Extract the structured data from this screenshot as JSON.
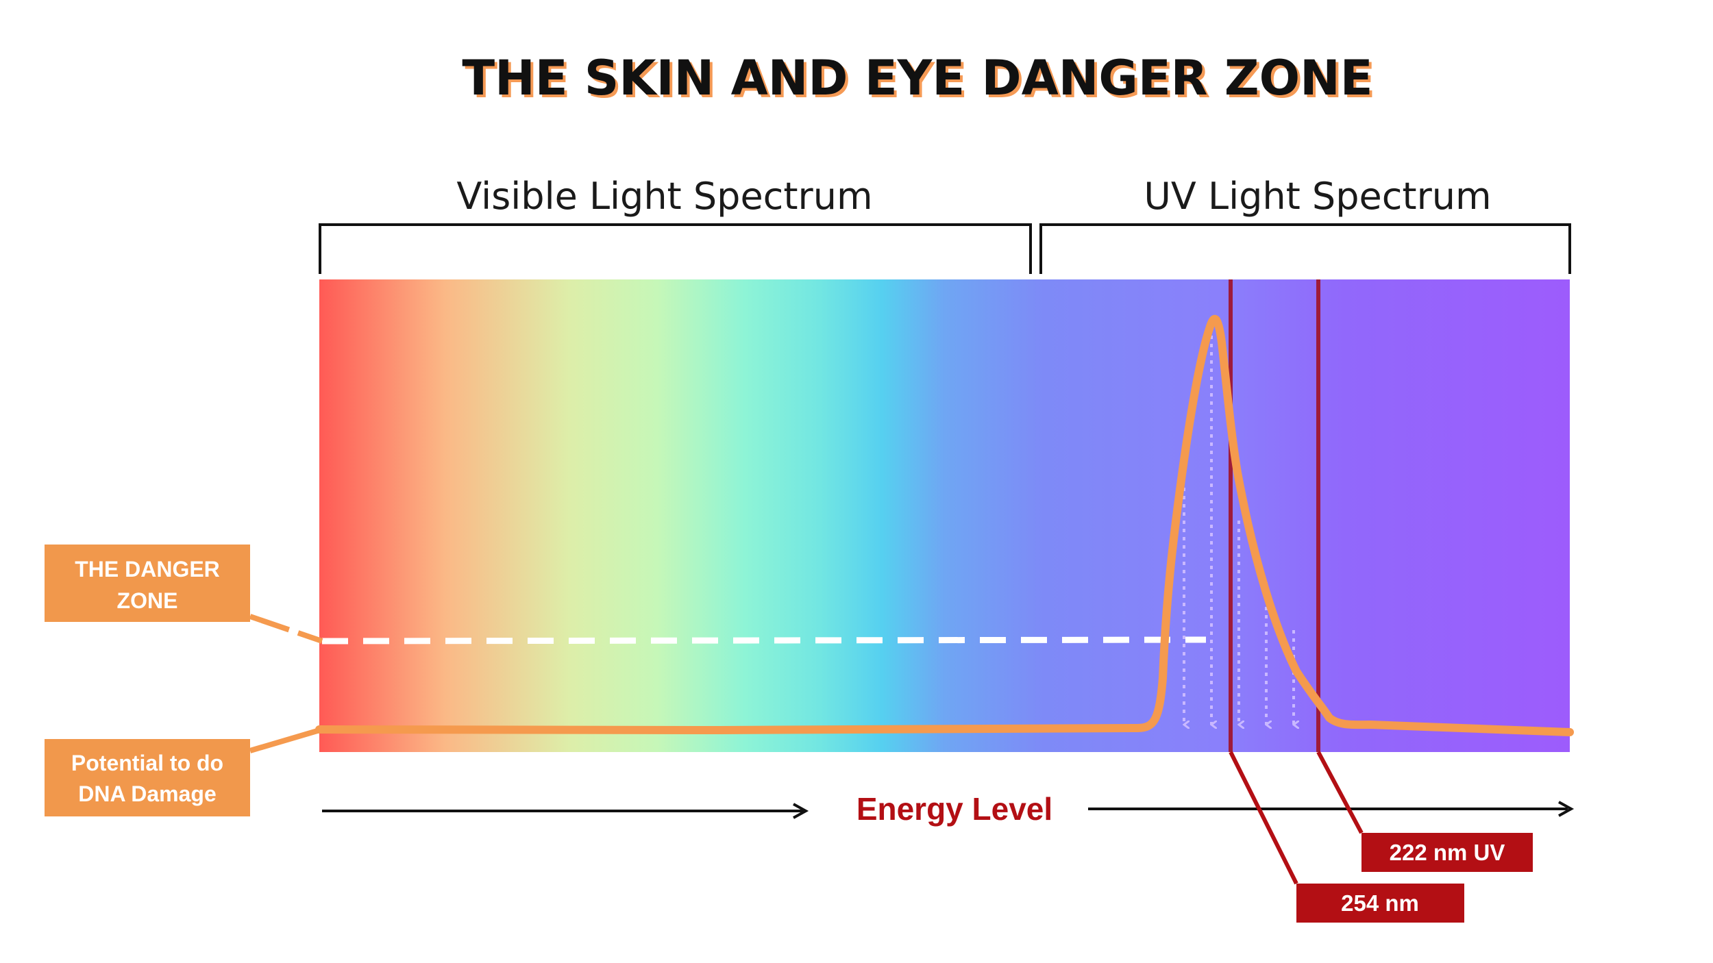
{
  "title": "THE SKIN AND EYE DANGER ZONE",
  "spectrum_labels": {
    "visible": "Visible Light Spectrum",
    "uv": "UV Light Spectrum"
  },
  "callouts": {
    "danger_zone": [
      "THE DANGER",
      "ZONE"
    ],
    "dna_damage": [
      "Potential to do",
      "DNA Damage"
    ]
  },
  "axis": {
    "label": "Energy Level"
  },
  "wavelength_markers": [
    {
      "label": "254 nm",
      "color": "#b30f14"
    },
    {
      "label": "222 nm UV",
      "color": "#b30f14"
    }
  ],
  "colors": {
    "title_shadow": "#f59a55",
    "callout_box": "#f1984c",
    "curve": "#f59a4e",
    "marker": "#b30f14",
    "marker_line": "#9e1b3a",
    "danger_line": "#ffffff",
    "spectrum_stops": [
      "#ff5a55",
      "#fbb886",
      "#c6f7b8",
      "#7df1dc",
      "#56d0f0",
      "#7c8bf7",
      "#8a7ffb",
      "#9d5cfc"
    ]
  }
}
